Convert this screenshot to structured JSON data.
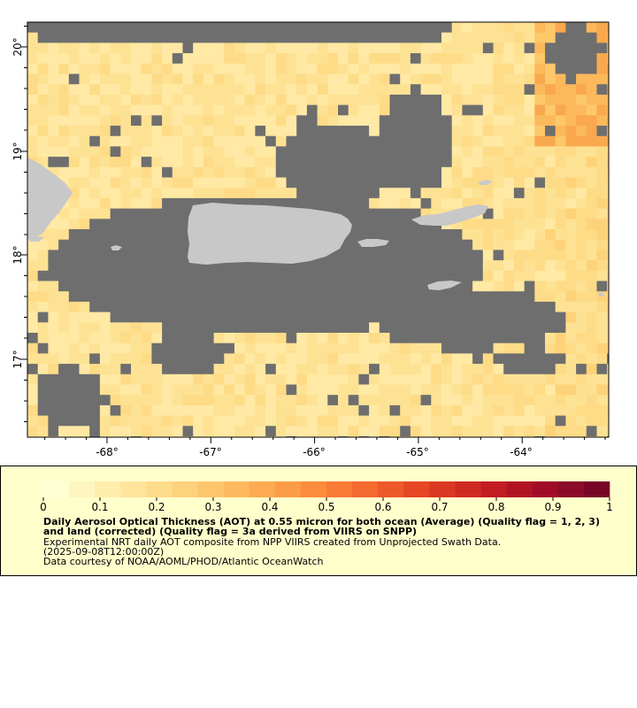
{
  "map": {
    "lon_labels": [
      "-68°",
      "-67°",
      "-66°",
      "-65°",
      "-64°"
    ],
    "lat_labels": [
      "20°",
      "19°",
      "18°",
      "17°"
    ],
    "colors": {
      "no_data": "#6e6e6e",
      "land": "#c8c8c8",
      "frame": "#000000",
      "aot_low": "#ffffcc",
      "aot_mid": "#fed976",
      "aot_high": "#f58a3a"
    }
  },
  "legend": {
    "scale_labels": [
      "0",
      "0.1",
      "0.2",
      "0.3",
      "0.4",
      "0.5",
      "0.6",
      "0.7",
      "0.8",
      "0.9",
      "1"
    ],
    "title": "Daily Aerosol Optical Thickness (AOT) at 0.55 micron for both ocean (Average) (Quality flag = 1, 2, 3) and land (corrected) (Quality flag = 3a derived from VIIRS on SNPP)",
    "line1": "Experimental NRT daily AOT composite from NPP VIIRS created from Unprojected Swath Data.",
    "line2": "(2025-09-08T12:00:00Z)",
    "line3": "Data courtesy of NOAA/AOML/PHOD/Atlantic OceanWatch",
    "colorbar_colors": [
      "#ffffd4",
      "#fff5c0",
      "#ffedad",
      "#ffe59c",
      "#fedc8c",
      "#fed27c",
      "#fec66c",
      "#feb95e",
      "#fdab52",
      "#fd9c47",
      "#fc8c3c",
      "#f97b35",
      "#f46a2f",
      "#ee592a",
      "#e64826",
      "#db3823",
      "#cf2a22",
      "#c11d23",
      "#b11325",
      "#a00c28",
      "#8c0a2a",
      "#780526"
    ],
    "background": "#ffffcc"
  }
}
